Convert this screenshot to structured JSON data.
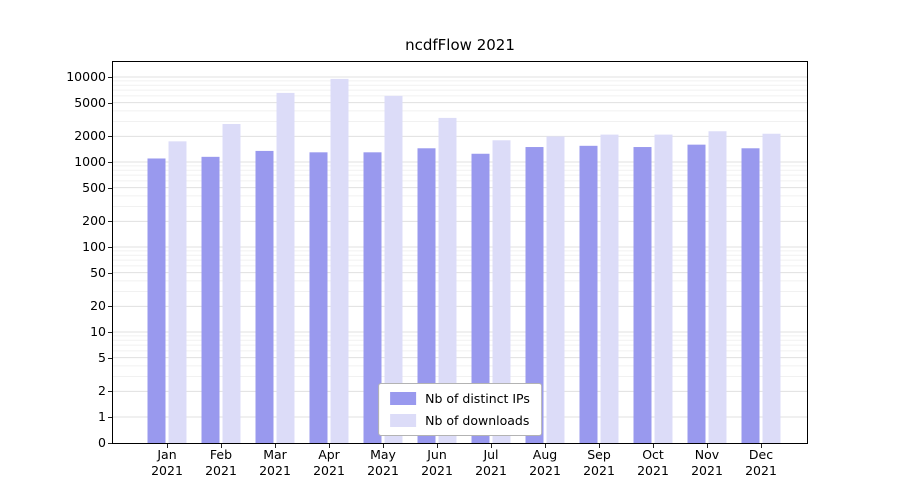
{
  "chart_data": {
    "type": "bar",
    "title": "ncdfFlow 2021",
    "categories": [
      "Jan",
      "Feb",
      "Mar",
      "Apr",
      "May",
      "Jun",
      "Jul",
      "Aug",
      "Sep",
      "Oct",
      "Nov",
      "Dec"
    ],
    "x_year": "2021",
    "series": [
      {
        "name": "Nb of distinct IPs",
        "color": "#9999ee",
        "values": [
          1100,
          1150,
          1350,
          1300,
          1300,
          1450,
          1250,
          1500,
          1550,
          1500,
          1600,
          1450
        ]
      },
      {
        "name": "Nb of downloads",
        "color": "#dcdcf8",
        "values": [
          1750,
          2800,
          6500,
          9500,
          6000,
          3300,
          1800,
          2000,
          2100,
          2100,
          2300,
          2150
        ]
      }
    ],
    "y_scale": "symlog",
    "y_ticks": [
      0,
      1,
      2,
      5,
      10,
      20,
      50,
      100,
      200,
      500,
      1000,
      2000,
      5000,
      10000
    ],
    "ylim": [
      0,
      15000
    ],
    "grid": "horizontal-major-minor",
    "legend_position": "lower center"
  }
}
